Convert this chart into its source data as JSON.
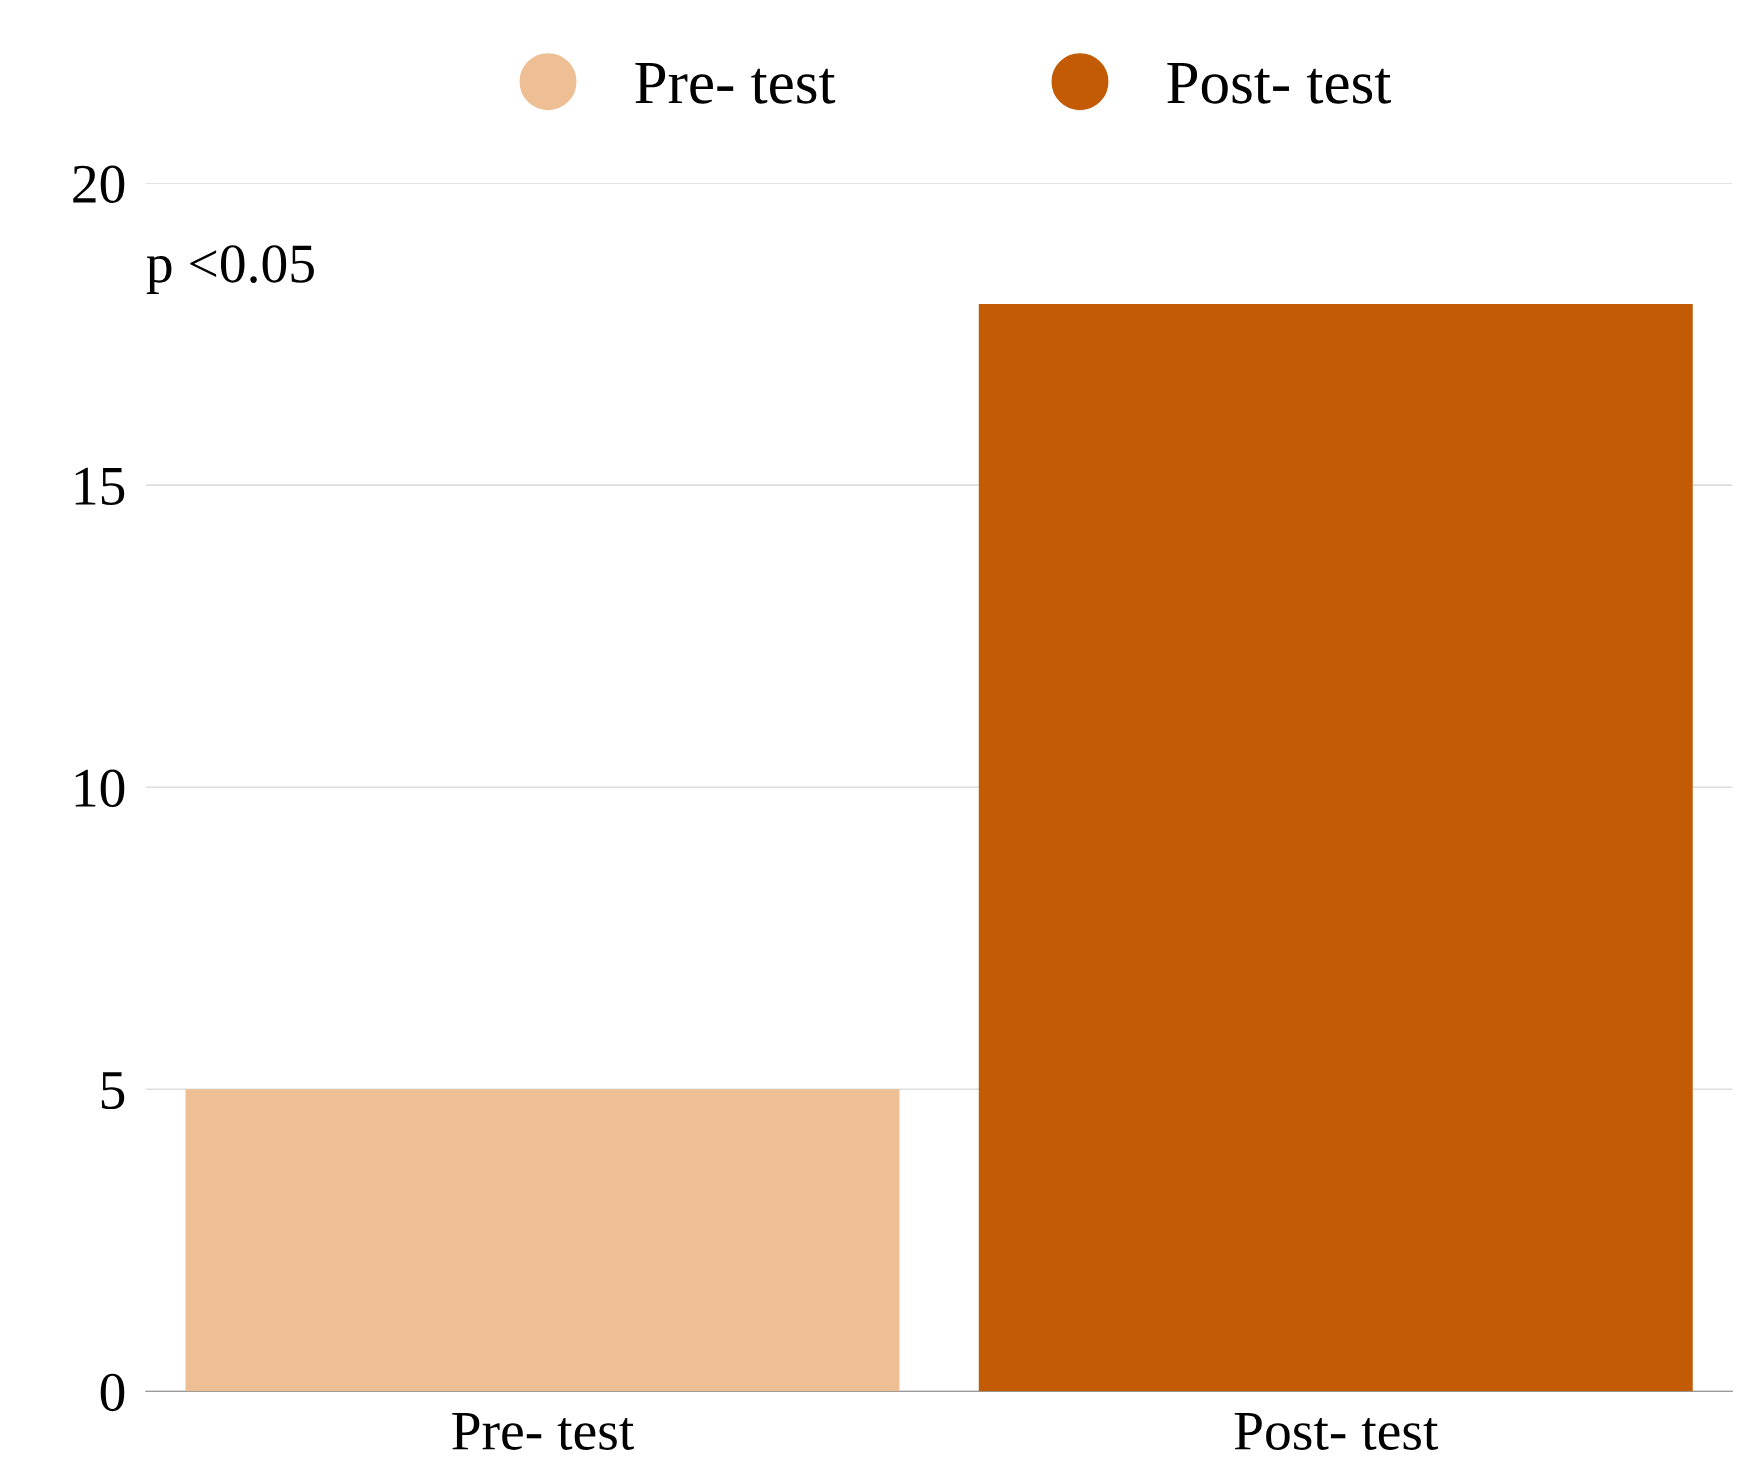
{
  "chart_data": {
    "type": "bar",
    "categories": [
      "Pre- test",
      "Post- test"
    ],
    "series": [
      {
        "name": "Pre- test",
        "color": "#eebf94",
        "values": [
          5,
          null
        ]
      },
      {
        "name": "Post- test",
        "color": "#c25b03",
        "values": [
          null,
          18
        ]
      }
    ],
    "ylim": [
      0,
      20
    ],
    "yticks": [
      0,
      5,
      10,
      15,
      20
    ],
    "grid": "y",
    "legend": "top",
    "annotations": [
      "p <0.05"
    ]
  }
}
